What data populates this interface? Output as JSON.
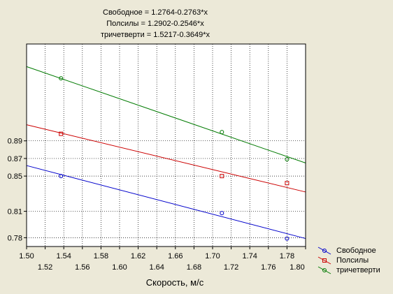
{
  "chart_data": {
    "type": "scatter",
    "title_lines": [
      "Свободное = 1.2764-0.2763*x",
      "Полсилы = 1.2902-0.2546*x",
      "тричетверти = 1.5217-0.3649*x"
    ],
    "xlabel": "Скорость, м/с",
    "ylabel": "",
    "xlim": [
      1.5,
      1.8
    ],
    "ylim": [
      0.77,
      1.0
    ],
    "grid": true,
    "legend_position": "bottom-right",
    "x_ticks_top": [
      "1.50",
      "1.54",
      "1.58",
      "1.62",
      "1.66",
      "1.70",
      "1.74",
      "1.78"
    ],
    "x_ticks_bottom": [
      "1.52",
      "1.56",
      "1.60",
      "1.64",
      "1.68",
      "1.72",
      "1.76",
      "1.80"
    ],
    "y_ticks": [
      "0.78",
      "0.81",
      "0.85",
      "0.87",
      "0.89"
    ],
    "series": [
      {
        "name": "Свободное",
        "color": "#0000cc",
        "marker": "circle",
        "fit": {
          "intercept": 1.2764,
          "slope": -0.2763
        },
        "points": [
          {
            "x": 1.537,
            "y": 0.85
          },
          {
            "x": 1.71,
            "y": 0.808
          },
          {
            "x": 1.78,
            "y": 0.779
          }
        ]
      },
      {
        "name": "Полсилы",
        "color": "#cc0000",
        "marker": "square",
        "fit": {
          "intercept": 1.2902,
          "slope": -0.2546
        },
        "points": [
          {
            "x": 1.537,
            "y": 0.898
          },
          {
            "x": 1.71,
            "y": 0.85
          },
          {
            "x": 1.78,
            "y": 0.842
          }
        ]
      },
      {
        "name": "тричетверти",
        "color": "#007a00",
        "marker": "circle",
        "fit": {
          "intercept": 1.5217,
          "slope": -0.3649
        },
        "points": [
          {
            "x": 1.537,
            "y": 0.961
          },
          {
            "x": 1.71,
            "y": 0.9
          },
          {
            "x": 1.78,
            "y": 0.869
          }
        ]
      }
    ]
  }
}
